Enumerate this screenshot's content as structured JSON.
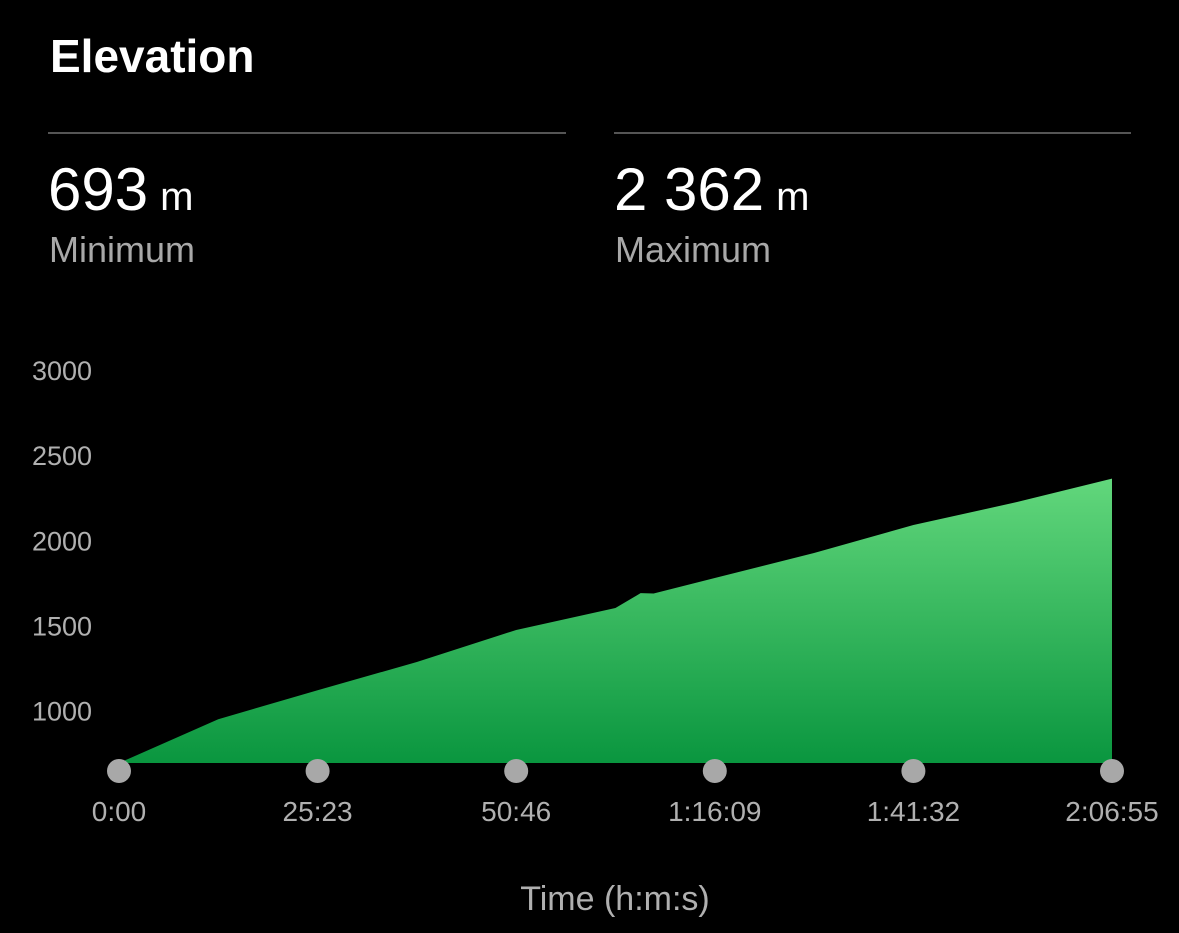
{
  "header": {
    "title": "Elevation"
  },
  "stats": [
    {
      "value": "693",
      "unit": "m",
      "label": "Minimum"
    },
    {
      "value": "2 362",
      "unit": "m",
      "label": "Maximum"
    }
  ],
  "chart_data": {
    "type": "area",
    "x_label": "Time (h:m:s)",
    "x": [
      0,
      761,
      1523,
      2284,
      3046,
      3807,
      4000,
      4100,
      4569,
      5330,
      6092,
      6853,
      7615
    ],
    "values": [
      693,
      950,
      1120,
      1286,
      1474,
      1603,
      1690,
      1688,
      1779,
      1926,
      2090,
      2219,
      2362
    ],
    "color_top": "#62d77c",
    "color_bottom": "#0a963f",
    "xlim": [
      0,
      7615
    ],
    "xticks": [
      {
        "value": 0,
        "label": "0:00"
      },
      {
        "value": 1523,
        "label": "25:23"
      },
      {
        "value": 3046,
        "label": "50:46"
      },
      {
        "value": 4569,
        "label": "1:16:09"
      },
      {
        "value": 6092,
        "label": "1:41:32"
      },
      {
        "value": 7615,
        "label": "2:06:55"
      }
    ],
    "ylim": [
      693,
      3000
    ],
    "yticks": [
      1000,
      1500,
      2000,
      2500,
      3000
    ],
    "grid": false
  }
}
